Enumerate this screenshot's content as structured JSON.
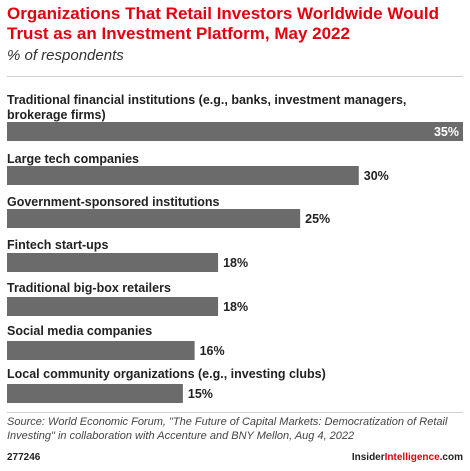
{
  "title": "Organizations That Retail Investors Worldwide Would Trust as an Investment Platform, May 2022",
  "subtitle": "% of respondents",
  "source": "Source: World Economic Forum, \"The Future of Capital Markets: Democratization of Retail Investing\" in collaboration with Accenture and BNY Mellon, Aug 4, 2022",
  "footer": {
    "chart_id": "277246",
    "brand_main": "Insider",
    "brand_accent": "Intelligence",
    "brand_suffix": ".com"
  },
  "colors": {
    "title": "#e3000f",
    "bar": "#6b6b6b",
    "accent": "#e3000f"
  },
  "chart_data": {
    "type": "bar",
    "orientation": "horizontal",
    "categories": [
      "Traditional financial institutions (e.g., banks, investment managers, brokerage firms)",
      "Large tech companies",
      "Government-sponsored institutions",
      "Fintech start-ups",
      "Traditional big-box retailers",
      "Social media companies",
      "Local community organizations (e.g., investing clubs)"
    ],
    "values": [
      35,
      30,
      25,
      18,
      18,
      16,
      15
    ],
    "value_labels": [
      "35%",
      "30%",
      "25%",
      "18%",
      "18%",
      "16%",
      "15%"
    ],
    "xlim": [
      0,
      35
    ],
    "grid": false,
    "legend": "none"
  }
}
